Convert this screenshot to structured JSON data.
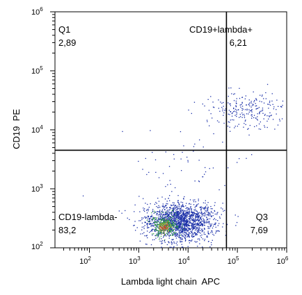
{
  "chart_data": {
    "type": "scatter",
    "subtype": "flow-cytometry-dot-plot",
    "xlabel": "Lambda light chain  APC",
    "ylabel": "CD19  PE",
    "xscale": "log",
    "yscale": "log",
    "xlim": [
      20,
      1000000
    ],
    "ylim": [
      100,
      1000000
    ],
    "x_ticks": [
      {
        "base": "10",
        "exp": "2",
        "value": 100
      },
      {
        "base": "10",
        "exp": "3",
        "value": 1000
      },
      {
        "base": "10",
        "exp": "4",
        "value": 10000
      },
      {
        "base": "10",
        "exp": "5",
        "value": 100000
      },
      {
        "base": "10",
        "exp": "6",
        "value": 1000000
      }
    ],
    "y_ticks": [
      {
        "base": "10",
        "exp": "2",
        "value": 100
      },
      {
        "base": "10",
        "exp": "3",
        "value": 1000
      },
      {
        "base": "10",
        "exp": "4",
        "value": 10000
      },
      {
        "base": "10",
        "exp": "5",
        "value": 100000
      },
      {
        "base": "10",
        "exp": "6",
        "value": 1000000
      }
    ],
    "gates": {
      "x": 60000,
      "y": 4500
    },
    "quadrants": [
      {
        "id": "q1",
        "name": "Q1",
        "percent": "2,89",
        "corner": "top-left"
      },
      {
        "id": "q2",
        "name": "CD19+lambda+",
        "percent": "6,21",
        "corner": "top-right"
      },
      {
        "id": "q3",
        "name": "Q3",
        "percent": "7,69",
        "corner": "bottom-right"
      },
      {
        "id": "q4",
        "name": "CD19-lambda-",
        "percent": "83,2",
        "corner": "bottom-left"
      }
    ],
    "populations": [
      {
        "name": "",
        "x_center": 6500,
        "y_center": 280,
        "x_log_sd": 0.35,
        "y_log_sd": 0.16,
        "count": 1700,
        "color": "#1a2fa8"
      },
      {
        "name": "",
        "x_center": 3400,
        "y_center": 240,
        "x_log_sd": 0.14,
        "y_log_sd": 0.09,
        "count": 260,
        "color": "#2e9e3e"
      },
      {
        "name": "",
        "x_center": 3300,
        "y_center": 230,
        "x_log_sd": 0.07,
        "y_log_sd": 0.05,
        "count": 70,
        "color": "#b5a03a"
      },
      {
        "name": "",
        "x_center": 3200,
        "y_center": 225,
        "x_log_sd": 0.04,
        "y_log_sd": 0.03,
        "count": 25,
        "color": "#c0392b"
      },
      {
        "name": "",
        "x_center": 150000,
        "y_center": 22000,
        "x_log_sd": 0.42,
        "y_log_sd": 0.15,
        "count": 240,
        "color": "#1a2fa8"
      },
      {
        "name": "",
        "x_center": 8000,
        "y_center": 2500,
        "x_log_sd": 0.6,
        "y_log_sd": 0.3,
        "count": 60,
        "color": "#1a2fa8"
      }
    ],
    "colors": {
      "dots_primary": "#1a2fa8",
      "density_mid": "#2e9e3e",
      "density_high": "#c0392b",
      "gate_lines": "#000000"
    },
    "grid": false,
    "legend": "none"
  }
}
